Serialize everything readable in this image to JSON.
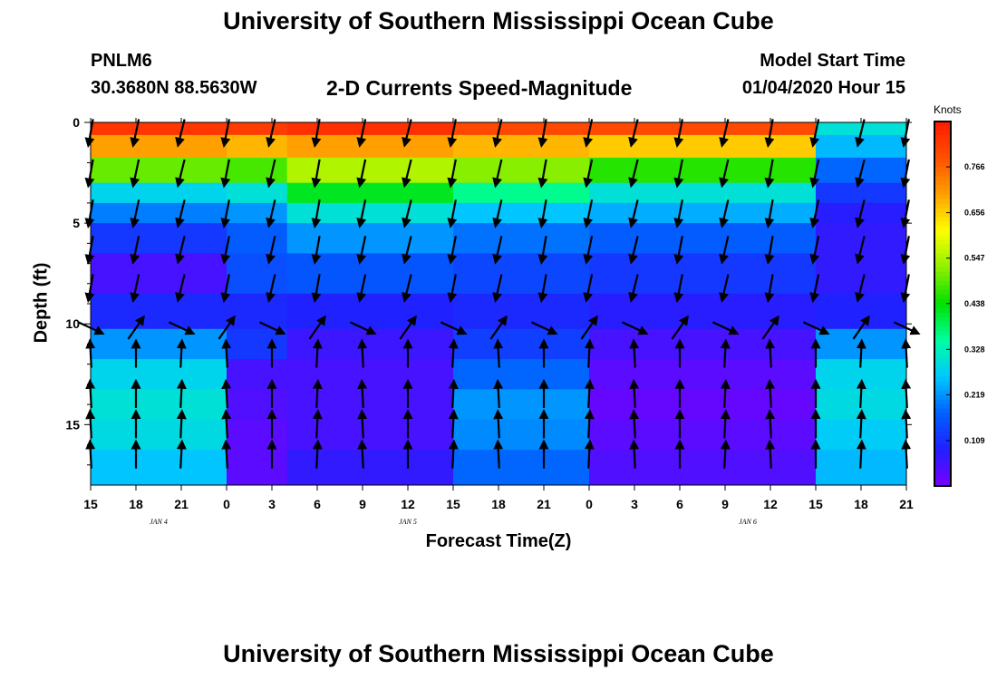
{
  "header": {
    "title": "University of Southern Mississippi Ocean Cube",
    "station_id": "PNLM6",
    "station_location": "30.3680N 88.5630W",
    "plot_title": "2-D Currents Speed-Magnitude",
    "start_label": "Model Start Time",
    "start_value": "01/04/2020 Hour 15"
  },
  "footer": {
    "title": "University of Southern Mississippi Ocean Cube"
  },
  "colors": {
    "scale": [
      "#7a00ff",
      "#2020ff",
      "#0060ff",
      "#00c8ff",
      "#00ffa0",
      "#00e000",
      "#90f000",
      "#ffff00",
      "#ffa000",
      "#ff5000",
      "#ff1a00"
    ],
    "arrow": "#000000"
  },
  "chart_data": {
    "type": "heatmap",
    "title": "2-D Currents Speed-Magnitude",
    "xlabel": "Forecast Time(Z)",
    "ylabel": "Depth (ft)",
    "x_hours": [
      0,
      54
    ],
    "y_range": [
      0,
      18
    ],
    "x_tick_labels": [
      "15",
      "18",
      "21",
      "0",
      "3",
      "6",
      "9",
      "12",
      "15",
      "18",
      "21",
      "0",
      "3",
      "6",
      "9",
      "12",
      "15",
      "18",
      "21"
    ],
    "y_ticks": [
      0,
      5,
      10,
      15
    ],
    "y_tick_labels": [
      "0",
      "5",
      "10",
      "15"
    ],
    "day_labels": [
      {
        "label": "JAN  4",
        "hour": 4.5
      },
      {
        "label": "JAN  5",
        "hour": 21
      },
      {
        "label": "JAN  6",
        "hour": 43.5
      }
    ],
    "colorbar": {
      "units": "Knots",
      "range": [
        0,
        0.875
      ],
      "ticks": [
        0.109,
        0.219,
        0.328,
        0.438,
        0.547,
        0.656,
        0.766
      ],
      "tick_labels": [
        "0.109",
        "0.219",
        "0.328",
        "0.438",
        "0.547",
        "0.656",
        "0.766"
      ]
    },
    "depth_levels": [
      0.25,
      1,
      2.5,
      3.5,
      4.5,
      5.5,
      7.5,
      9.5,
      11,
      12.5,
      14,
      15.5,
      17
    ],
    "hour_bands": [
      {
        "from": 0,
        "to": 9,
        "speeds": [
          0.83,
          0.7,
          0.5,
          0.28,
          0.2,
          0.12,
          0.05,
          0.1,
          0.22,
          0.28,
          0.3,
          0.29,
          0.26
        ]
      },
      {
        "from": 9,
        "to": 13,
        "speeds": [
          0.82,
          0.68,
          0.48,
          0.3,
          0.22,
          0.17,
          0.15,
          0.1,
          0.12,
          0.05,
          0.04,
          0.03,
          0.03
        ]
      },
      {
        "from": 13,
        "to": 24,
        "speeds": [
          0.84,
          0.7,
          0.55,
          0.42,
          0.3,
          0.22,
          0.16,
          0.09,
          0.06,
          0.05,
          0.05,
          0.05,
          0.07
        ]
      },
      {
        "from": 24,
        "to": 33,
        "speeds": [
          0.8,
          0.68,
          0.52,
          0.36,
          0.26,
          0.19,
          0.14,
          0.1,
          0.13,
          0.18,
          0.22,
          0.21,
          0.18
        ]
      },
      {
        "from": 33,
        "to": 48,
        "speeds": [
          0.8,
          0.66,
          0.46,
          0.3,
          0.24,
          0.17,
          0.12,
          0.08,
          0.05,
          0.03,
          0.02,
          0.03,
          0.04
        ]
      },
      {
        "from": 48,
        "to": 54,
        "speeds": [
          0.3,
          0.25,
          0.18,
          0.12,
          0.08,
          0.07,
          0.07,
          0.09,
          0.22,
          0.28,
          0.29,
          0.27,
          0.25
        ]
      }
    ],
    "arrow_hours": [
      0,
      3,
      6,
      9,
      12,
      15,
      18,
      21,
      24,
      27,
      30,
      33,
      36,
      39,
      42,
      45,
      48,
      51,
      54
    ],
    "arrow_depths": [
      0.5,
      2.5,
      4.5,
      6.3,
      8.2,
      10.2,
      11.5,
      13.5,
      15,
      16.5
    ],
    "arrow_rows": [
      {
        "depth": 0.5,
        "direction": "down",
        "speed": 0.8
      },
      {
        "depth": 2.5,
        "direction": "down",
        "speed": 0.5
      },
      {
        "depth": 4.5,
        "direction": "down",
        "speed": 0.2
      },
      {
        "depth": 6.3,
        "direction": "down",
        "speed": 0.12
      },
      {
        "depth": 8.2,
        "direction": "down",
        "speed": 0.08
      },
      {
        "depth": 10.2,
        "direction": "mixed",
        "speed": 0.08
      },
      {
        "depth": 11.5,
        "direction": "up",
        "speed": 0.1
      },
      {
        "depth": 13.5,
        "direction": "up",
        "speed": 0.1
      },
      {
        "depth": 15,
        "direction": "up",
        "speed": 0.1
      },
      {
        "depth": 16.5,
        "direction": "up",
        "speed": 0.1
      }
    ]
  }
}
